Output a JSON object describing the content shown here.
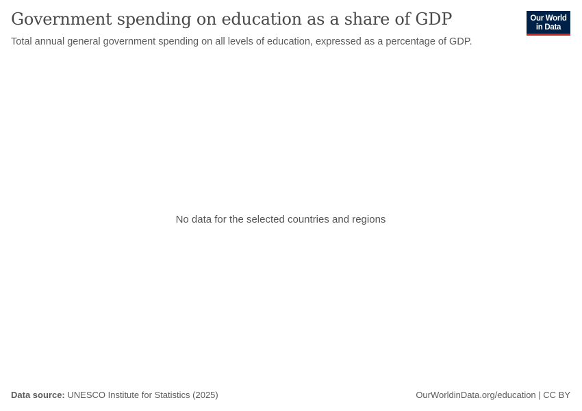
{
  "header": {
    "title": "Government spending on education as a share of GDP",
    "subtitle": "Total annual general government spending on all levels of education, expressed as a percentage of GDP.",
    "logo": {
      "line1": "Our World",
      "line2": "in Data",
      "bg_color": "#002147",
      "accent_color": "#ce261e"
    }
  },
  "chart_data": {
    "type": "line",
    "title": "Government spending on education as a share of GDP",
    "series": [],
    "message": "No data for the selected countries and regions"
  },
  "footer": {
    "source_label": "Data source:",
    "source_value": "UNESCO Institute for Statistics (2025)",
    "license": "OurWorldinData.org/education | CC BY"
  }
}
